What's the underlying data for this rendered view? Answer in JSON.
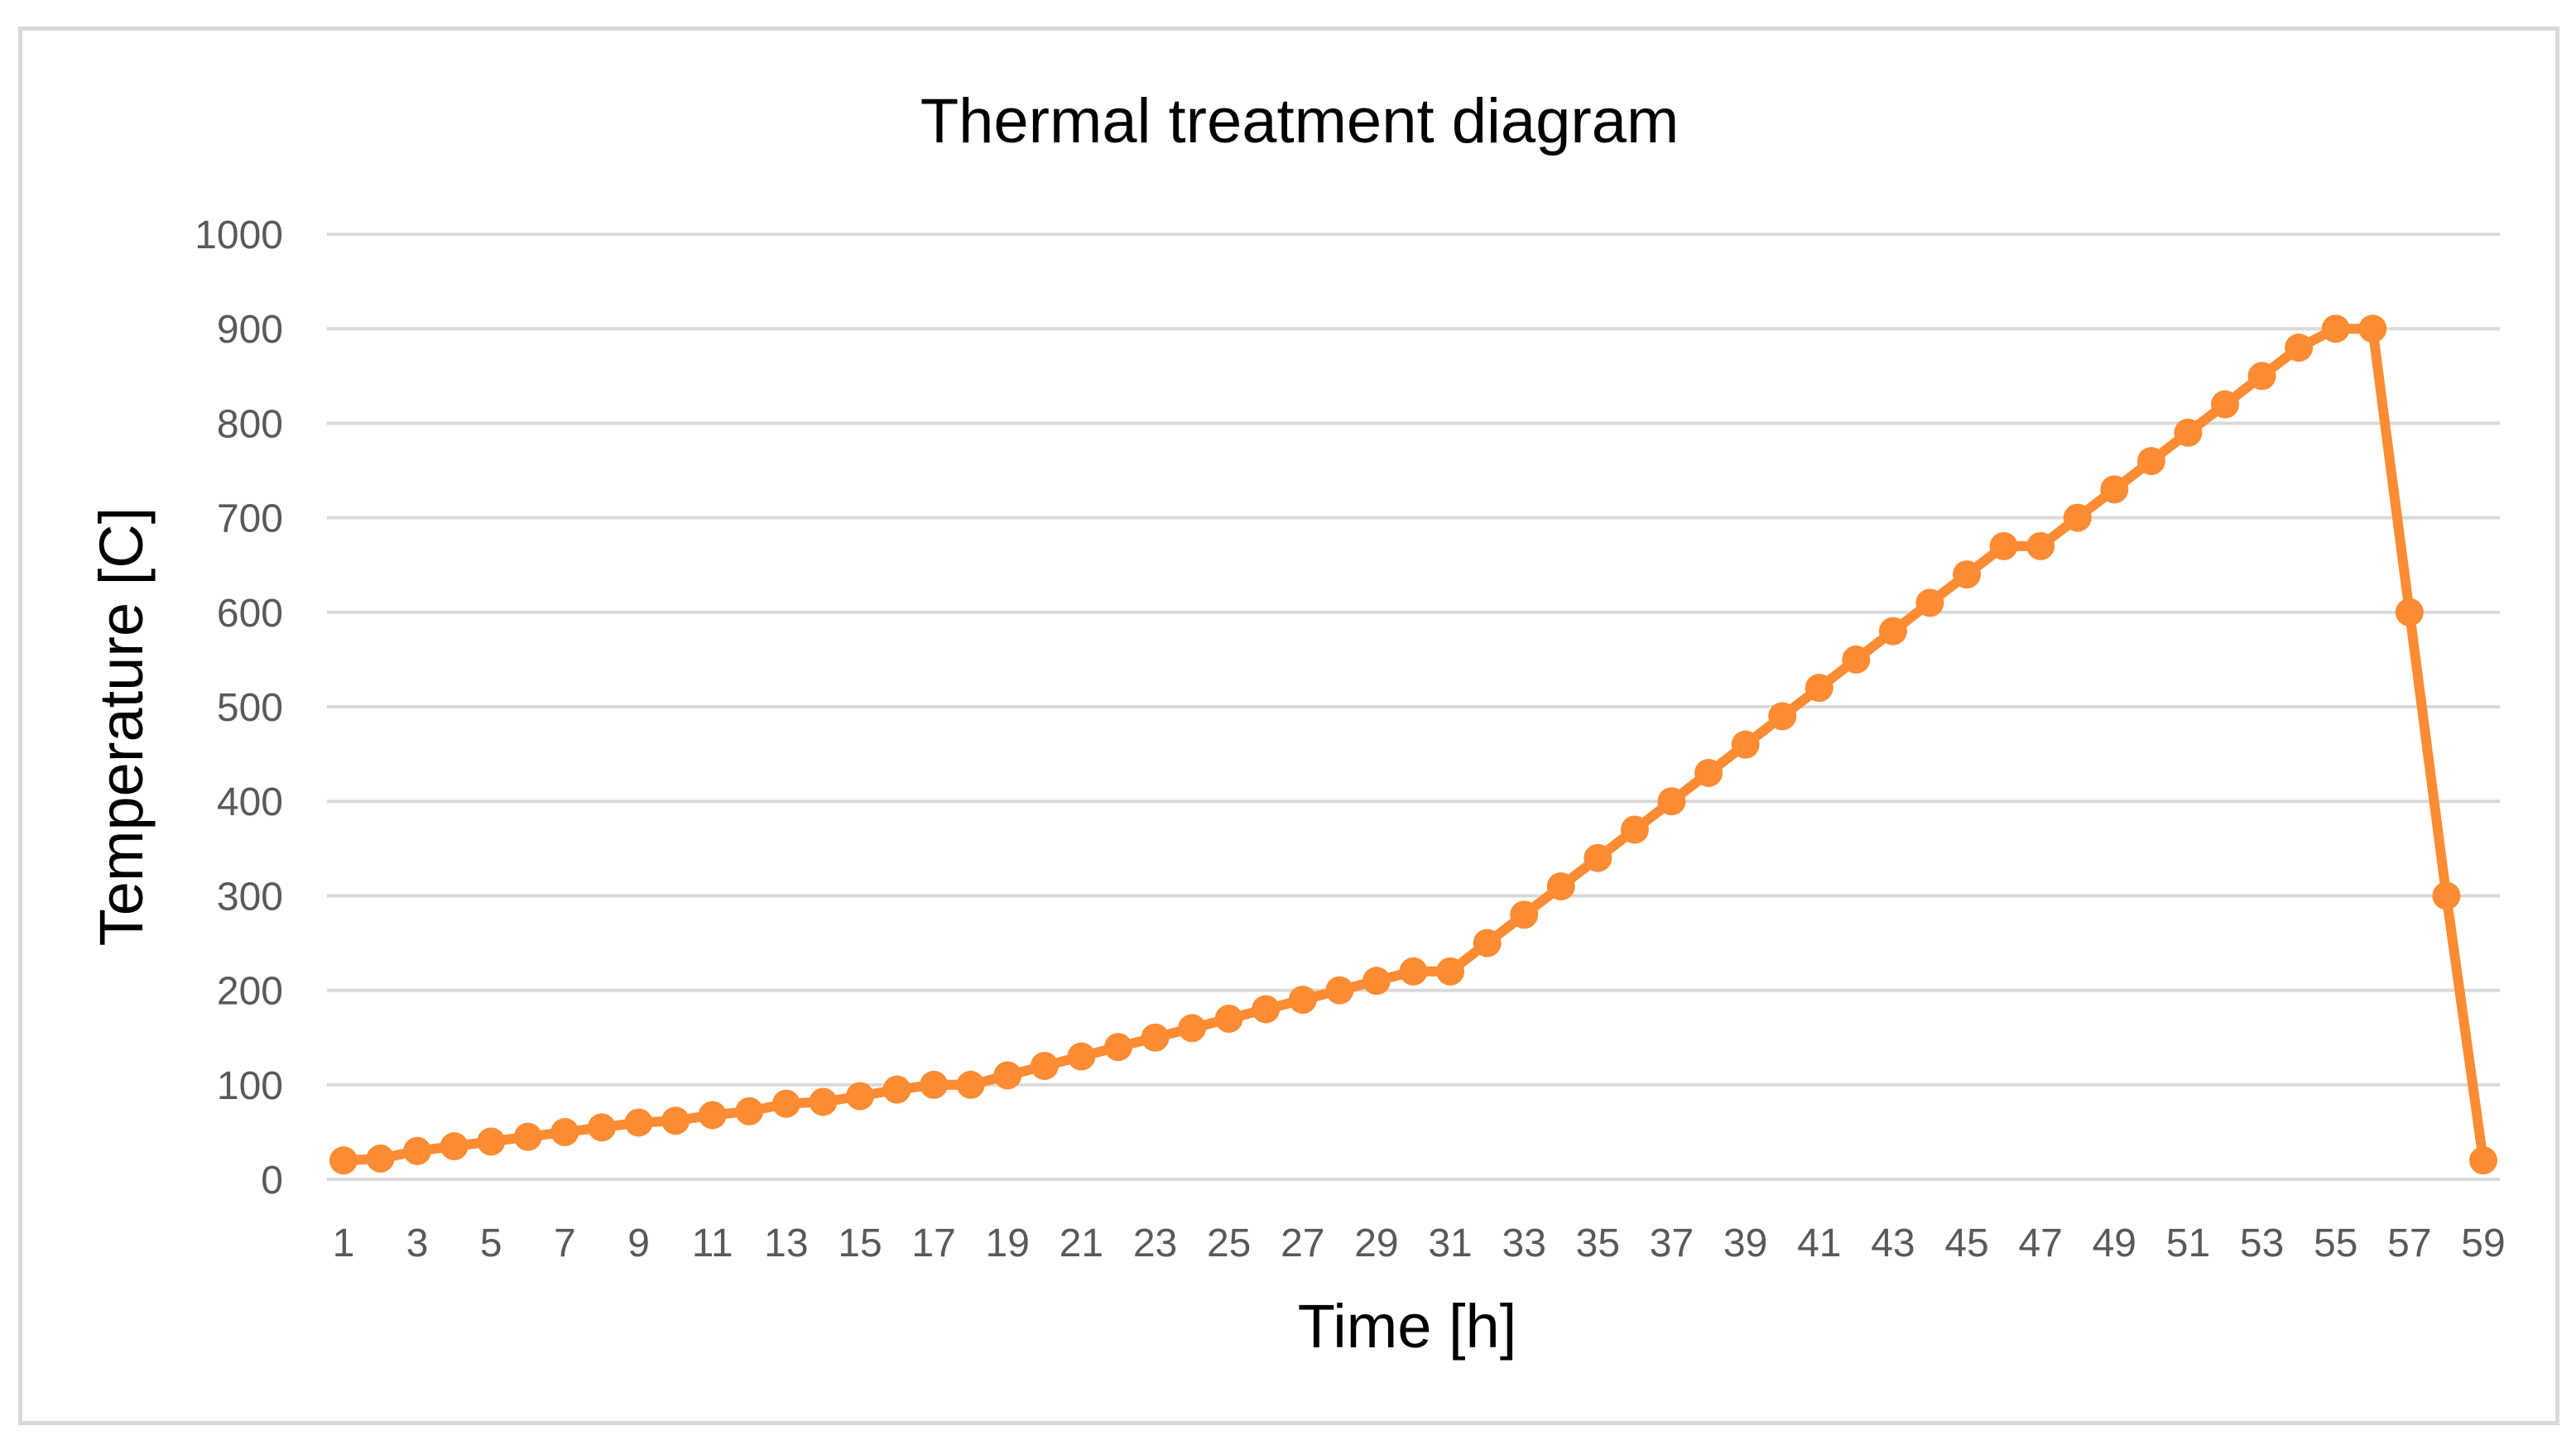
{
  "chart_data": {
    "type": "line",
    "title": "Thermal treatment diagram",
    "xlabel": "Time [h]",
    "ylabel": "Temperature [C]",
    "ylim": [
      0,
      1000
    ],
    "yticks": [
      0,
      100,
      200,
      300,
      400,
      500,
      600,
      700,
      800,
      900,
      1000
    ],
    "xticks": [
      1,
      3,
      5,
      7,
      9,
      11,
      13,
      15,
      17,
      19,
      21,
      23,
      25,
      27,
      29,
      31,
      33,
      35,
      37,
      39,
      41,
      43,
      45,
      47,
      49,
      51,
      53,
      55,
      57,
      59
    ],
    "grid": true,
    "legend": "none",
    "colors": {
      "series": "#fb8c33",
      "grid": "#d9d9d9",
      "tick_text": "#595959"
    },
    "series": [
      {
        "x": [
          1,
          2,
          3,
          4,
          5,
          6,
          7,
          8,
          9,
          10,
          11,
          12,
          13,
          14,
          15,
          16,
          17,
          18,
          19,
          20,
          21,
          22,
          23,
          24,
          25,
          26,
          27,
          28,
          29,
          30,
          31,
          32,
          33,
          34,
          35,
          36,
          37,
          38,
          39,
          40,
          41,
          42,
          43,
          44,
          45,
          46,
          47,
          48,
          49,
          50,
          51,
          52,
          53,
          54,
          55,
          56,
          57,
          58,
          59
        ],
        "values": [
          20,
          22,
          30,
          35,
          40,
          45,
          50,
          55,
          60,
          62,
          68,
          72,
          80,
          82,
          88,
          95,
          100,
          100,
          110,
          120,
          130,
          140,
          150,
          160,
          170,
          180,
          190,
          200,
          210,
          220,
          220,
          250,
          280,
          310,
          340,
          370,
          400,
          430,
          460,
          490,
          520,
          550,
          580,
          610,
          640,
          670,
          670,
          700,
          730,
          760,
          790,
          820,
          850,
          880,
          900,
          900,
          600,
          300,
          20
        ]
      }
    ]
  }
}
